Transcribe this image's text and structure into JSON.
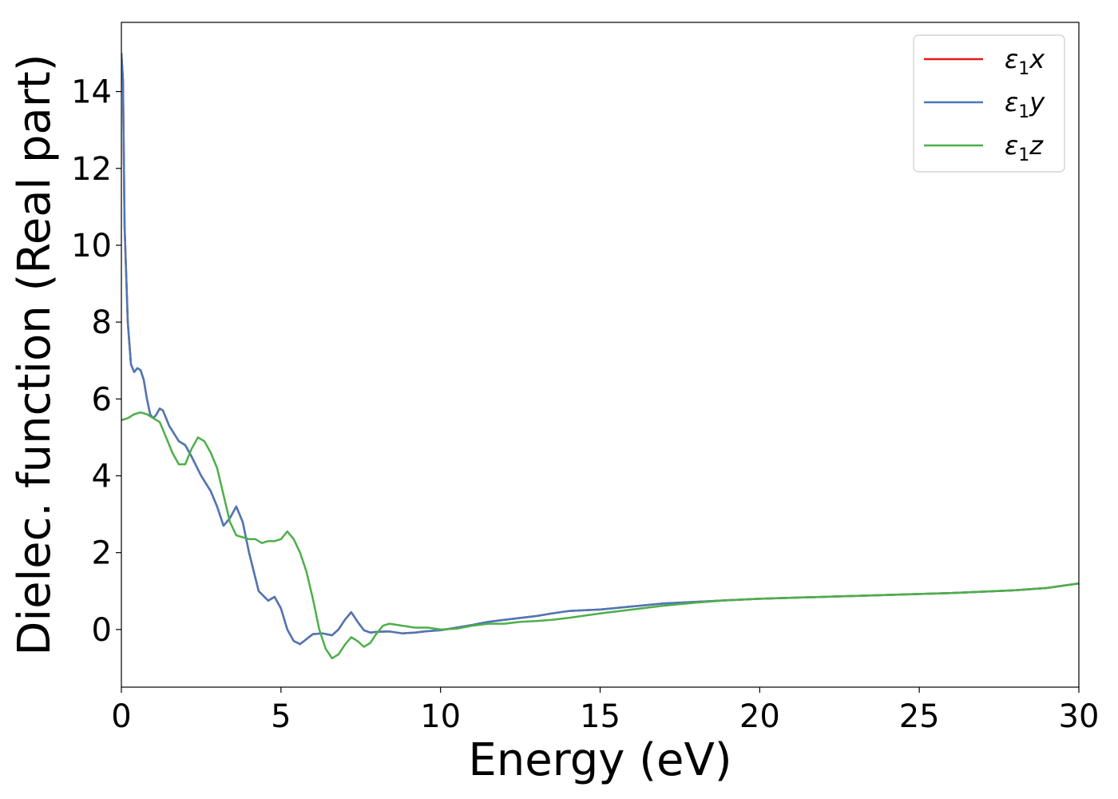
{
  "chart_data": {
    "type": "line",
    "xlabel": "Energy (eV)",
    "ylabel": "Dielec. function (Real part)",
    "xlim": [
      0,
      30
    ],
    "ylim": [
      -1.5,
      15.8
    ],
    "xticks": [
      0,
      5,
      10,
      15,
      20,
      25,
      30
    ],
    "yticks": [
      0,
      2,
      4,
      6,
      8,
      10,
      12,
      14
    ],
    "grid": false,
    "legend_position": "top-right",
    "series": [
      {
        "name": "ε₁x",
        "legend_main": "ε",
        "legend_sub": "1",
        "legend_var": "x",
        "color": "#e41a1c",
        "x": [
          0,
          0.05,
          0.1,
          0.2,
          0.3,
          0.4,
          0.5,
          0.6,
          0.7,
          0.8,
          0.9,
          1.0,
          1.1,
          1.2,
          1.3,
          1.5,
          1.8,
          2.0,
          2.2,
          2.5,
          2.8,
          3.0,
          3.2,
          3.4,
          3.6,
          3.8,
          4.0,
          4.3,
          4.6,
          4.8,
          5.0,
          5.2,
          5.4,
          5.6,
          5.8,
          6.0,
          6.3,
          6.6,
          6.8,
          7.0,
          7.2,
          7.4,
          7.6,
          7.8,
          8.0,
          8.4,
          8.8,
          9.2,
          9.5,
          10.0,
          10.5,
          11.0,
          11.5,
          12.0,
          12.5,
          13.0,
          13.5,
          14.0,
          14.5,
          15.0,
          16.0,
          17.0,
          18.0,
          19.0,
          20.0,
          22.0,
          24.0,
          26.0,
          28.0,
          29.0,
          30.0
        ],
        "y": [
          15.0,
          14.3,
          10.5,
          8.0,
          6.9,
          6.7,
          6.8,
          6.75,
          6.5,
          6.0,
          5.6,
          5.5,
          5.6,
          5.75,
          5.7,
          5.3,
          4.9,
          4.8,
          4.5,
          4.0,
          3.6,
          3.2,
          2.7,
          2.9,
          3.2,
          2.8,
          2.0,
          1.0,
          0.75,
          0.85,
          0.55,
          0.0,
          -0.3,
          -0.38,
          -0.25,
          -0.12,
          -0.1,
          -0.15,
          0.0,
          0.25,
          0.45,
          0.2,
          -0.02,
          -0.08,
          -0.06,
          -0.05,
          -0.1,
          -0.08,
          -0.05,
          -0.02,
          0.05,
          0.12,
          0.2,
          0.25,
          0.3,
          0.35,
          0.42,
          0.48,
          0.5,
          0.52,
          0.6,
          0.68,
          0.72,
          0.76,
          0.8,
          0.85,
          0.9,
          0.95,
          1.02,
          1.08,
          1.2
        ]
      },
      {
        "name": "ε₁y",
        "legend_main": "ε",
        "legend_sub": "1",
        "legend_var": "y",
        "color": "#4a79b8",
        "x": [
          0,
          0.05,
          0.1,
          0.2,
          0.3,
          0.4,
          0.5,
          0.6,
          0.7,
          0.8,
          0.9,
          1.0,
          1.1,
          1.2,
          1.3,
          1.5,
          1.8,
          2.0,
          2.2,
          2.5,
          2.8,
          3.0,
          3.2,
          3.4,
          3.6,
          3.8,
          4.0,
          4.3,
          4.6,
          4.8,
          5.0,
          5.2,
          5.4,
          5.6,
          5.8,
          6.0,
          6.3,
          6.6,
          6.8,
          7.0,
          7.2,
          7.4,
          7.6,
          7.8,
          8.0,
          8.4,
          8.8,
          9.2,
          9.5,
          10.0,
          10.5,
          11.0,
          11.5,
          12.0,
          12.5,
          13.0,
          13.5,
          14.0,
          14.5,
          15.0,
          16.0,
          17.0,
          18.0,
          19.0,
          20.0,
          22.0,
          24.0,
          26.0,
          28.0,
          29.0,
          30.0
        ],
        "y": [
          15.0,
          14.3,
          10.5,
          8.0,
          6.9,
          6.7,
          6.8,
          6.75,
          6.5,
          6.0,
          5.6,
          5.5,
          5.6,
          5.75,
          5.7,
          5.3,
          4.9,
          4.8,
          4.5,
          4.0,
          3.6,
          3.2,
          2.7,
          2.9,
          3.2,
          2.8,
          2.0,
          1.0,
          0.75,
          0.85,
          0.55,
          0.0,
          -0.3,
          -0.38,
          -0.25,
          -0.12,
          -0.1,
          -0.15,
          0.0,
          0.25,
          0.45,
          0.2,
          -0.02,
          -0.08,
          -0.06,
          -0.05,
          -0.1,
          -0.08,
          -0.05,
          -0.02,
          0.05,
          0.12,
          0.2,
          0.25,
          0.3,
          0.35,
          0.42,
          0.48,
          0.5,
          0.52,
          0.6,
          0.68,
          0.72,
          0.76,
          0.8,
          0.85,
          0.9,
          0.95,
          1.02,
          1.08,
          1.2
        ]
      },
      {
        "name": "ε₁z",
        "legend_main": "ε",
        "legend_sub": "1",
        "legend_var": "z",
        "color": "#4daf4a",
        "x": [
          0,
          0.2,
          0.4,
          0.6,
          0.8,
          1.0,
          1.2,
          1.4,
          1.6,
          1.8,
          2.0,
          2.2,
          2.4,
          2.6,
          2.8,
          3.0,
          3.2,
          3.4,
          3.6,
          3.8,
          4.0,
          4.2,
          4.4,
          4.6,
          4.8,
          5.0,
          5.2,
          5.4,
          5.6,
          5.8,
          6.0,
          6.2,
          6.4,
          6.6,
          6.8,
          7.0,
          7.2,
          7.4,
          7.6,
          7.8,
          8.0,
          8.2,
          8.4,
          8.8,
          9.2,
          9.6,
          10.0,
          10.5,
          11.0,
          11.5,
          12.0,
          12.5,
          13.0,
          13.5,
          14.0,
          15.0,
          16.0,
          17.0,
          18.0,
          19.0,
          20.0,
          22.0,
          24.0,
          26.0,
          28.0,
          29.0,
          30.0
        ],
        "y": [
          5.45,
          5.5,
          5.6,
          5.65,
          5.6,
          5.5,
          5.4,
          5.0,
          4.6,
          4.3,
          4.3,
          4.7,
          5.0,
          4.9,
          4.6,
          4.2,
          3.5,
          2.8,
          2.45,
          2.4,
          2.35,
          2.35,
          2.25,
          2.3,
          2.3,
          2.35,
          2.55,
          2.35,
          2.0,
          1.5,
          0.8,
          0.0,
          -0.5,
          -0.75,
          -0.65,
          -0.4,
          -0.2,
          -0.3,
          -0.45,
          -0.35,
          -0.1,
          0.1,
          0.15,
          0.1,
          0.05,
          0.05,
          0.0,
          0.02,
          0.1,
          0.15,
          0.15,
          0.2,
          0.22,
          0.25,
          0.3,
          0.42,
          0.52,
          0.62,
          0.7,
          0.76,
          0.8,
          0.85,
          0.9,
          0.95,
          1.02,
          1.08,
          1.2
        ]
      }
    ]
  }
}
